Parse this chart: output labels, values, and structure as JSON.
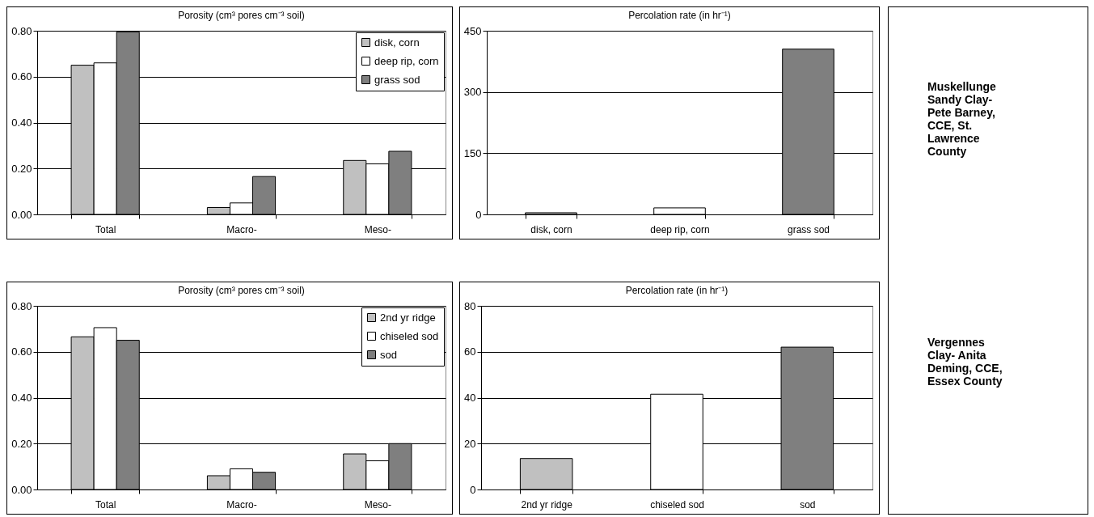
{
  "chart_data": [
    {
      "type": "bar",
      "title": "Porosity (cm³ pores cm⁻³ soil)",
      "categories": [
        "Total",
        "Macro-",
        "Meso-"
      ],
      "series": [
        {
          "name": "disk, corn",
          "color": "#c0c0c0",
          "values": [
            0.65,
            0.03,
            0.235
          ]
        },
        {
          "name": "deep rip, corn",
          "color": "#ffffff",
          "values": [
            0.66,
            0.05,
            0.22
          ]
        },
        {
          "name": "grass sod",
          "color": "#7f7f7f",
          "values": [
            0.795,
            0.165,
            0.275
          ]
        }
      ],
      "ylim": [
        0,
        0.8
      ],
      "yticks": [
        {
          "value": 0,
          "label": "0.00"
        },
        {
          "value": 0.2,
          "label": "0.20"
        },
        {
          "value": 0.4,
          "label": "0.40"
        },
        {
          "value": 0.6,
          "label": "0.60"
        },
        {
          "value": 0.8,
          "label": "0.80"
        }
      ],
      "grid": "y",
      "legend": "top right"
    },
    {
      "type": "bar",
      "title": "Percolation rate (in hr⁻¹)",
      "categories": [
        "disk, corn",
        "deep rip, corn",
        "grass sod"
      ],
      "values": [
        4,
        16,
        405
      ],
      "colors": [
        "#c0c0c0",
        "#ffffff",
        "#7f7f7f"
      ],
      "ylim": [
        0,
        450
      ],
      "yticks": [
        0,
        150,
        300,
        450
      ],
      "grid": "y"
    },
    {
      "type": "other",
      "annotations": [
        "Muskellunge Sandy Clay- Pete Barney, CCE, St. Lawrence County",
        "Vergennes Clay- Anita Deming, CCE, Essex County"
      ]
    },
    {
      "type": "bar",
      "title": "Porosity (cm³ pores cm⁻³ soil)",
      "categories": [
        "Total",
        "Macro-",
        "Meso-"
      ],
      "series": [
        {
          "name": "2nd yr ridge",
          "color": "#c0c0c0",
          "values": [
            0.665,
            0.06,
            0.155
          ]
        },
        {
          "name": "chiseled sod",
          "color": "#ffffff",
          "values": [
            0.705,
            0.09,
            0.125
          ]
        },
        {
          "name": "sod",
          "color": "#7f7f7f",
          "values": [
            0.65,
            0.075,
            0.2
          ]
        }
      ],
      "ylim": [
        0,
        0.8
      ],
      "yticks": [
        {
          "value": 0,
          "label": "0.00"
        },
        {
          "value": 0.2,
          "label": "0.20"
        },
        {
          "value": 0.4,
          "label": "0.40"
        },
        {
          "value": 0.6,
          "label": "0.60"
        },
        {
          "value": 0.8,
          "label": "0.80"
        }
      ],
      "grid": "y",
      "legend": "top right"
    },
    {
      "type": "bar",
      "title": "Percolation rate (in hr⁻¹)",
      "categories": [
        "2nd yr ridge",
        "chiseled sod",
        "sod"
      ],
      "values": [
        13.5,
        41.5,
        62
      ],
      "colors": [
        "#c0c0c0",
        "#ffffff",
        "#7f7f7f"
      ],
      "ylim": [
        0,
        80
      ],
      "yticks": [
        0,
        20,
        40,
        60,
        80
      ],
      "grid": "y"
    }
  ]
}
